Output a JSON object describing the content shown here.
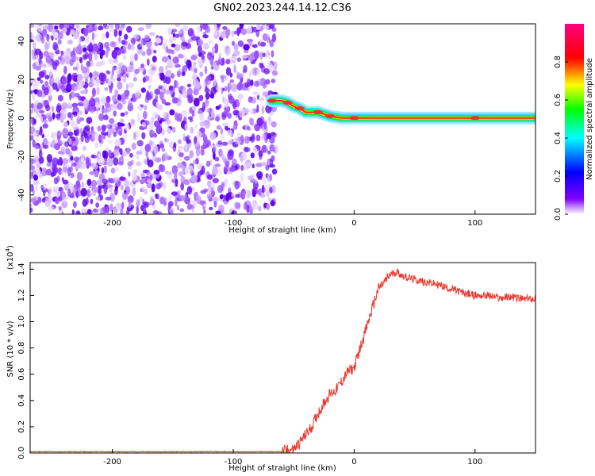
{
  "figure_title": "GN02.2023.244.14.12.C36",
  "chart_data": [
    {
      "type": "heatmap",
      "xlabel": "Height of straight line (km)",
      "ylabel": "Frequency (Hz)",
      "xlim": [
        -268,
        150
      ],
      "ylim": [
        -50,
        49
      ],
      "xticks": [
        -200,
        -100,
        0,
        100
      ],
      "yticks": [
        40,
        20,
        0,
        -20,
        -40
      ],
      "grid": false,
      "colorbar": {
        "label": "Normalized spectral amplitude",
        "range": [
          0.0,
          1.0
        ],
        "ticks": [
          0.0,
          0.2,
          0.4,
          0.6,
          0.8
        ],
        "tick_labels": [
          "0.0",
          "0.2",
          "0.4",
          "0.6",
          "0.8"
        ],
        "colors": [
          "#ffffff",
          "#8000ff",
          "#0000ff",
          "#00ffff",
          "#00ff00",
          "#ffff00",
          "#ff0000",
          "#ff0080"
        ]
      },
      "noise_region": {
        "x_range": [
          -268,
          -65
        ],
        "y_range": [
          -50,
          49
        ]
      },
      "signal_track": [
        {
          "x": -68,
          "y": 9
        },
        {
          "x": -60,
          "y": 9
        },
        {
          "x": -55,
          "y": 8
        },
        {
          "x": -50,
          "y": 6
        },
        {
          "x": -45,
          "y": 5
        },
        {
          "x": -40,
          "y": 3
        },
        {
          "x": -30,
          "y": 3
        },
        {
          "x": -25,
          "y": 2
        },
        {
          "x": -20,
          "y": 1
        },
        {
          "x": -10,
          "y": 0
        },
        {
          "x": 0,
          "y": 0
        },
        {
          "x": 50,
          "y": 0
        },
        {
          "x": 100,
          "y": 0
        },
        {
          "x": 150,
          "y": 0
        }
      ]
    },
    {
      "type": "line",
      "xlabel": "Height of straight line (km)",
      "ylabel": "SNR (10 * v/v)",
      "y_multiplier": "(x10",
      "y_multiplier_exp": "4",
      "y_multiplier_close": ")",
      "xlim": [
        -268,
        150
      ],
      "ylim": [
        0,
        1.45
      ],
      "xticks": [
        -200,
        -100,
        0,
        100
      ],
      "yticks": [
        0.0,
        0.2,
        0.4,
        0.6,
        0.8,
        1.0,
        1.2,
        1.4
      ],
      "ytick_labels": [
        "0.0",
        "0.2",
        "0.4",
        "0.6",
        "0.8",
        "1.0",
        "1.2",
        "1.4"
      ],
      "grid": false,
      "line_color": "#e8392f",
      "series": [
        {
          "x": [
            -268,
            -200,
            -100,
            -60,
            -50,
            -45,
            -40,
            -35,
            -30,
            -25,
            -20,
            -15,
            -10,
            -5,
            0,
            5,
            10,
            15,
            20,
            25,
            30,
            35,
            40,
            50,
            60,
            70,
            80,
            90,
            100,
            110,
            120,
            130,
            140,
            150
          ],
          "values": [
            0.01,
            0.01,
            0.01,
            0.01,
            0.03,
            0.08,
            0.14,
            0.2,
            0.3,
            0.38,
            0.45,
            0.48,
            0.55,
            0.62,
            0.65,
            0.8,
            0.95,
            1.1,
            1.25,
            1.3,
            1.36,
            1.38,
            1.35,
            1.32,
            1.3,
            1.28,
            1.25,
            1.22,
            1.2,
            1.2,
            1.18,
            1.19,
            1.17,
            1.18
          ]
        }
      ]
    }
  ]
}
